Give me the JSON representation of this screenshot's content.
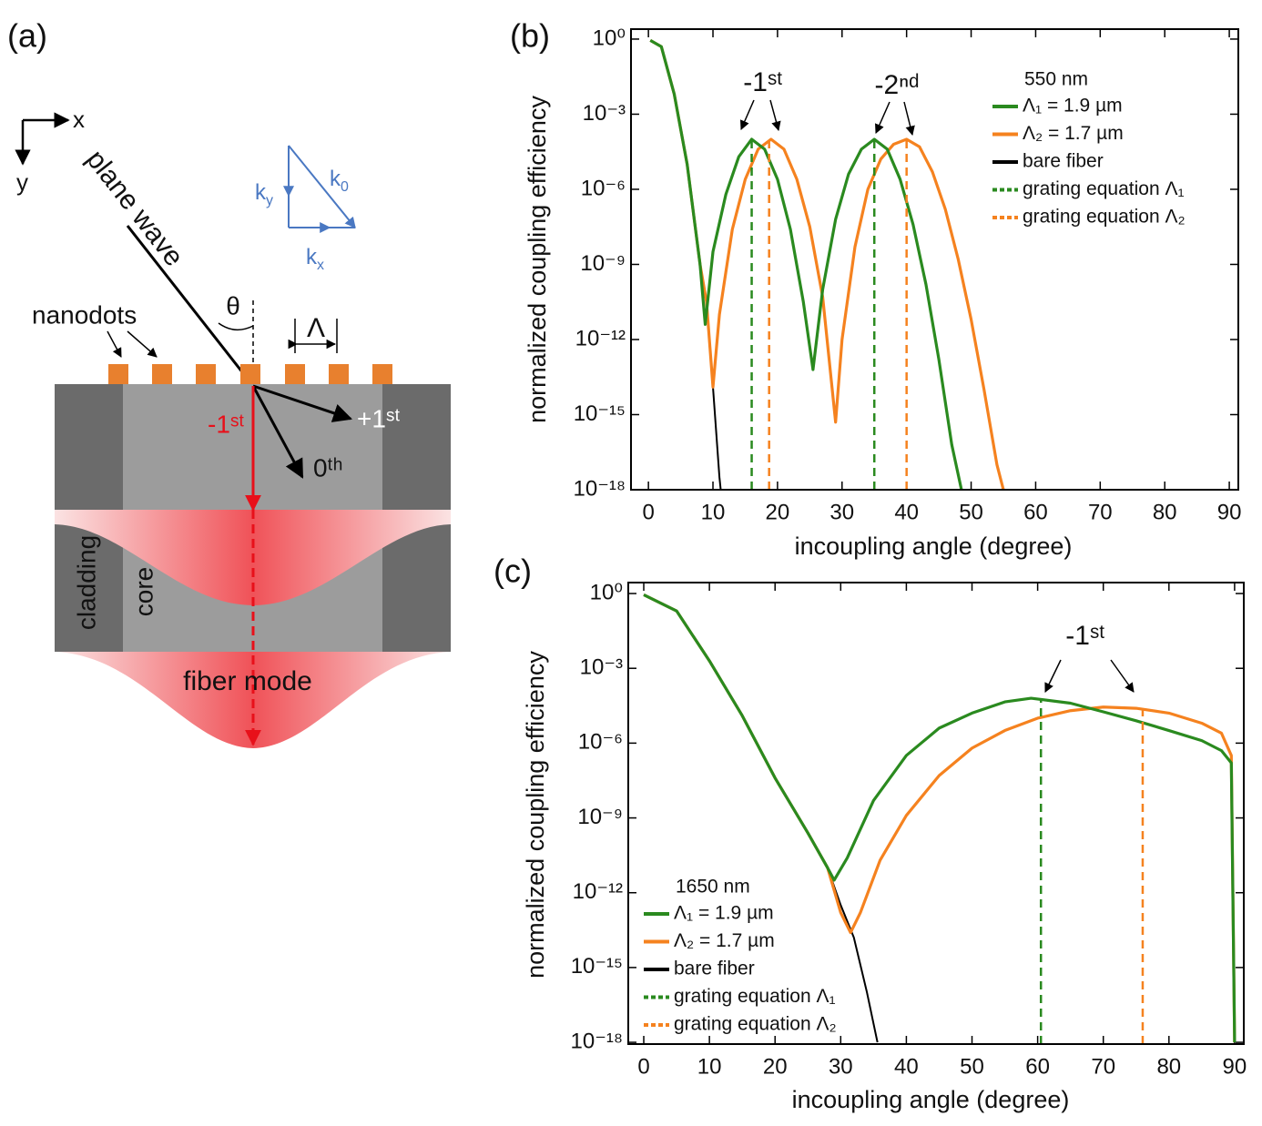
{
  "diagram": {
    "panel_label": "(a)",
    "axes": {
      "x": "x",
      "y": "y"
    },
    "incident": "plane wave",
    "angle": "θ",
    "period": "Λ",
    "nanodots": "nanodots",
    "k_labels": [
      {
        "base": "k",
        "sub": "y"
      },
      {
        "base": "k",
        "sub": "0"
      },
      {
        "base": "k",
        "sub": "x"
      }
    ],
    "orders": {
      "minus_first": "-1ˢᵗ",
      "plus_first": "+1ˢᵗ",
      "zeroth": "0ᵗʰ"
    },
    "cladding": "cladding",
    "core": "core",
    "fiber_mode": "fiber mode"
  },
  "chart_data": [
    {
      "type": "line",
      "panel_label": "(b)",
      "x_label": "incoupling angle (degree)",
      "y_label": "normalized coupling efficiency",
      "log_y": true,
      "grid": false,
      "legend": "upper right",
      "legend_title": "550 nm",
      "annotations": [
        "-1ˢᵗ",
        "-2ⁿᵈ"
      ],
      "xlim": [
        -2.7,
        91.4
      ],
      "xticks": [
        0,
        10,
        20,
        30,
        40,
        50,
        60,
        70,
        80,
        90
      ],
      "ylim": [
        1e-18,
        2.5
      ],
      "yticks": [
        {
          "value": 1,
          "label": "10⁰"
        },
        {
          "value": 0.001,
          "label": "10⁻³"
        },
        {
          "value": 1e-06,
          "label": "10⁻⁶"
        },
        {
          "value": 1e-09,
          "label": "10⁻⁹"
        },
        {
          "value": 1e-12,
          "label": "10⁻¹²"
        },
        {
          "value": 1e-15,
          "label": "10⁻¹⁵"
        },
        {
          "value": 1e-18,
          "label": "10⁻¹⁸"
        }
      ],
      "series": [
        {
          "name": "Λ₁ = 1.9 µm",
          "color": "#2a8a1f",
          "dash": false,
          "x": [
            0.3,
            2,
            4,
            6,
            8,
            8.8,
            10,
            12,
            14,
            16,
            18,
            20,
            22,
            24,
            25.5,
            27,
            29,
            31,
            33,
            35,
            37,
            39,
            41,
            43,
            45,
            47,
            48.5
          ],
          "values": [
            0.89,
            0.5,
            0.0063,
            1e-05,
            1e-09,
            4e-12,
            3.2e-09,
            6.3e-07,
            2e-05,
            0.0001,
            4e-05,
            2.5e-06,
            2.5e-08,
            3.2e-11,
            6.3e-14,
            1e-10,
            6.3e-08,
            4e-06,
            4e-05,
            0.0001,
            4e-05,
            2.5e-06,
            4e-08,
            1.6e-10,
            1.6e-13,
            6.3e-17,
            1e-18
          ]
        },
        {
          "name": "Λ₂ = 1.7 µm",
          "color": "#f5821f",
          "dash": false,
          "x": [
            0.3,
            2,
            4,
            6,
            8,
            9,
            10,
            11,
            13,
            15,
            17,
            19,
            21,
            23,
            25,
            27,
            29,
            30,
            32,
            34,
            36,
            38,
            40,
            42,
            44,
            46,
            48,
            50,
            52,
            54,
            55
          ],
          "values": [
            0.89,
            0.5,
            0.0063,
            1e-05,
            1e-09,
            3.2e-11,
            1.26e-14,
            1e-11,
            2.5e-08,
            2.5e-06,
            4e-05,
            0.0001,
            4e-05,
            2.5e-06,
            3.2e-08,
            5e-11,
            5e-16,
            1e-12,
            5e-09,
            1e-06,
            1.6e-05,
            6.3e-05,
            0.0001,
            5e-05,
            5e-06,
            1.6e-07,
            1.6e-09,
            6.3e-12,
            1e-14,
            1e-17,
            1e-18
          ]
        },
        {
          "name": "bare fiber",
          "color": "#000000",
          "dash": false,
          "x": [
            0.3,
            2,
            4,
            6,
            8,
            9,
            10,
            11,
            11.2
          ],
          "values": [
            0.89,
            0.5,
            0.0063,
            1e-05,
            1e-09,
            3.2e-11,
            1.26e-14,
            3.2e-18,
            1e-18
          ]
        },
        {
          "name": "grating equation Λ₁",
          "color": "#2a8a1f",
          "dash": true,
          "x": [
            16,
            35
          ],
          "values": [
            0.0001,
            0.0001
          ]
        },
        {
          "name": "grating equation Λ₂",
          "color": "#f5821f",
          "dash": true,
          "x": [
            18.7,
            40
          ],
          "values": [
            0.0001,
            0.0001
          ]
        }
      ]
    },
    {
      "type": "line",
      "panel_label": "(c)",
      "x_label": "incoupling angle (degree)",
      "y_label": "normalized coupling efficiency",
      "log_y": true,
      "grid": false,
      "legend": "lower left",
      "legend_title": "1650 nm",
      "annotations": [
        "-1ˢᵗ"
      ],
      "xlim": [
        -2.36,
        91.4
      ],
      "xticks": [
        0,
        10,
        20,
        30,
        40,
        50,
        60,
        70,
        80,
        90
      ],
      "ylim": [
        8.5e-19,
        2.75
      ],
      "yticks": [
        {
          "value": 1,
          "label": "10⁰"
        },
        {
          "value": 0.001,
          "label": "10⁻³"
        },
        {
          "value": 1e-06,
          "label": "10⁻⁶"
        },
        {
          "value": 1e-09,
          "label": "10⁻⁹"
        },
        {
          "value": 1e-12,
          "label": "10⁻¹²"
        },
        {
          "value": 1e-15,
          "label": "10⁻¹⁵"
        },
        {
          "value": 1e-18,
          "label": "10⁻¹⁸"
        }
      ],
      "series": [
        {
          "name": "Λ₁ = 1.9 µm",
          "color": "#2a8a1f",
          "dash": false,
          "x": [
            0,
            5,
            10,
            15,
            20,
            25,
            28,
            29,
            31,
            35,
            40,
            45,
            50,
            55,
            59,
            65,
            70,
            75,
            80,
            85,
            88,
            89.5,
            90
          ],
          "values": [
            0.89,
            0.2,
            0.002,
            1.26e-05,
            4e-08,
            2.5e-10,
            1e-11,
            3.2e-12,
            2.5e-11,
            5e-09,
            3.2e-07,
            4e-06,
            1.6e-05,
            4.5e-05,
            6.3e-05,
            4e-05,
            1.8e-05,
            7.9e-06,
            3.2e-06,
            1.26e-06,
            5e-07,
            1.6e-07,
            1e-18
          ]
        },
        {
          "name": "Λ₂ = 1.7 µm",
          "color": "#f5821f",
          "dash": false,
          "x": [
            0,
            5,
            10,
            15,
            20,
            25,
            28,
            30,
            31.5,
            33,
            36,
            40,
            45,
            50,
            55,
            60,
            65,
            70,
            75,
            80,
            85,
            88,
            89.5,
            90
          ],
          "values": [
            0.89,
            0.2,
            0.002,
            1.26e-05,
            4e-08,
            2.5e-10,
            1e-11,
            1.6e-13,
            2.5e-14,
            1.6e-13,
            2e-11,
            1.26e-09,
            5e-08,
            6.3e-07,
            3.2e-06,
            1e-05,
            2e-05,
            2.8e-05,
            2.5e-05,
            1.6e-05,
            6.3e-06,
            2.5e-06,
            3.2e-07,
            1e-18
          ]
        },
        {
          "name": "bare fiber",
          "color": "#000000",
          "dash": false,
          "x": [
            0,
            5,
            10,
            15,
            20,
            25,
            28,
            30,
            32,
            34,
            35.6
          ],
          "values": [
            0.89,
            0.2,
            0.002,
            1.26e-05,
            4e-08,
            2.5e-10,
            1e-11,
            3.2e-13,
            1.6e-14,
            1e-16,
            1e-18
          ]
        },
        {
          "name": "grating equation Λ₁",
          "color": "#2a8a1f",
          "dash": true,
          "x": [
            60.5
          ],
          "values": [
            6.3e-05
          ]
        },
        {
          "name": "grating equation Λ₂",
          "color": "#f5821f",
          "dash": true,
          "x": [
            76
          ],
          "values": [
            2.2e-05
          ]
        }
      ]
    }
  ]
}
